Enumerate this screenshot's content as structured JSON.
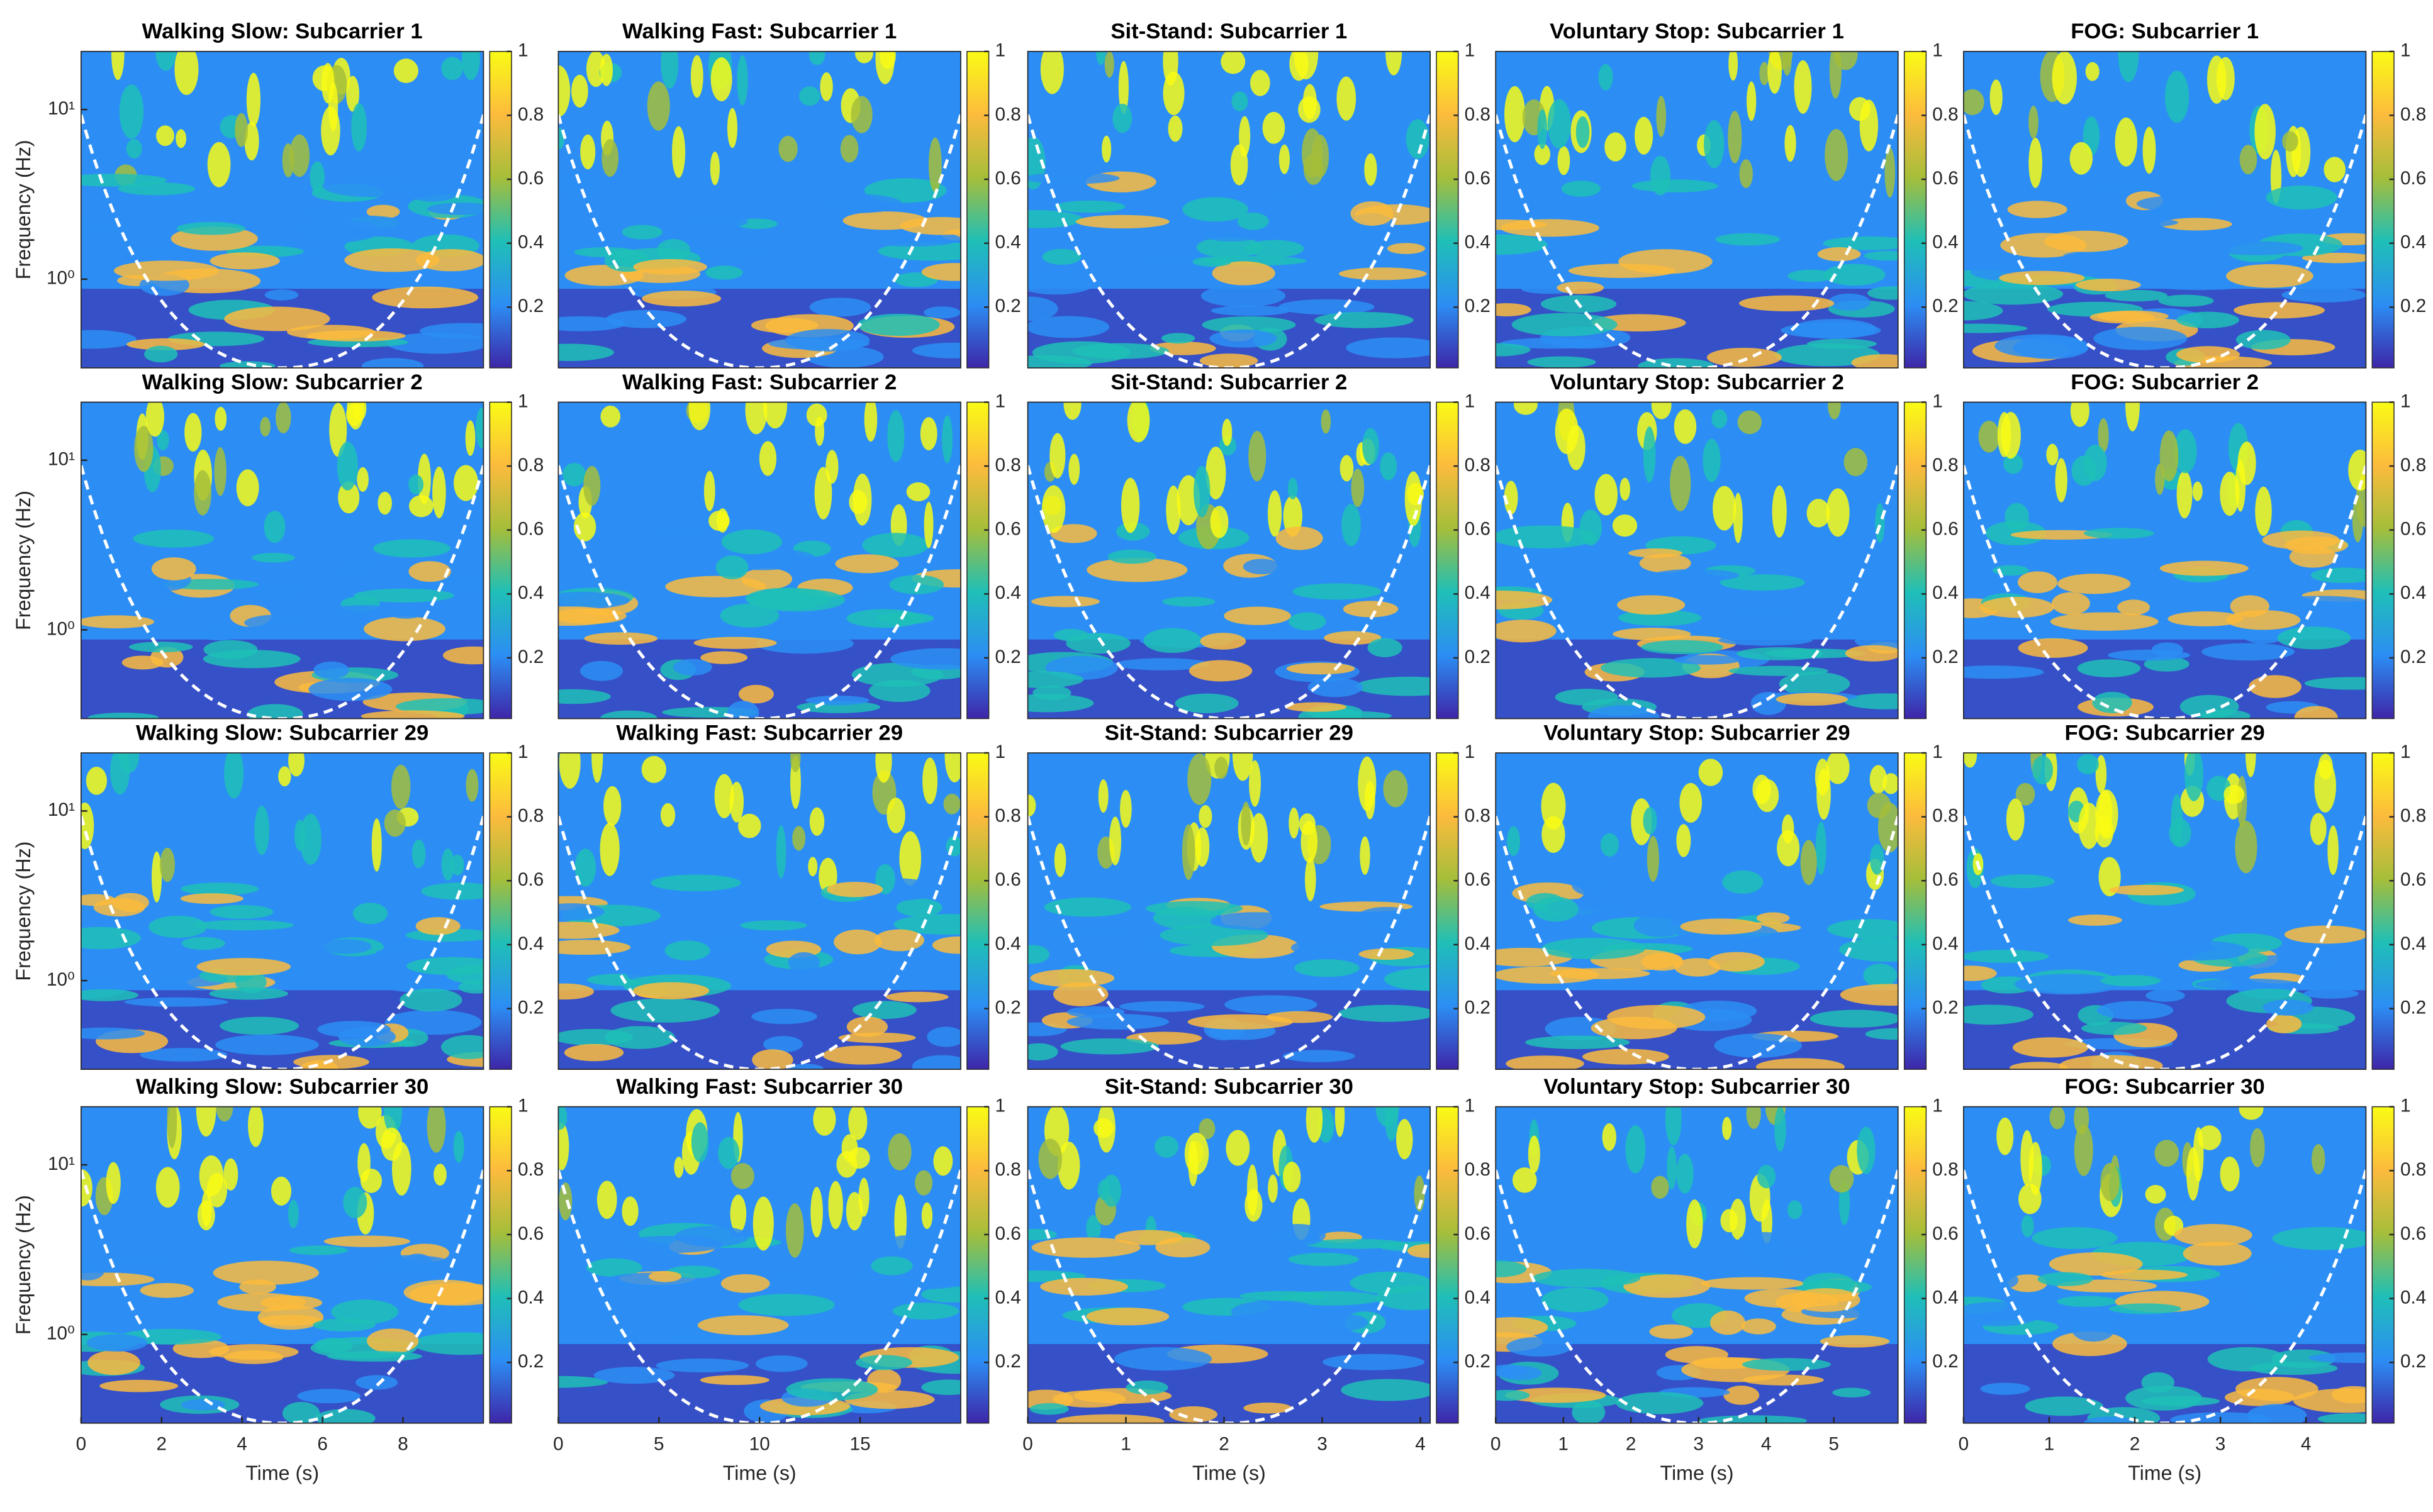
{
  "chart_data": [
    {
      "type": "heatmap",
      "title": "Walking Slow: Subcarrier 1",
      "xlim": [
        0,
        10
      ],
      "ylim": [
        0.3,
        22
      ],
      "yscale": "log",
      "yticks": [
        {
          "value": 1,
          "label": "10⁰"
        },
        {
          "value": 10,
          "label": "10¹"
        }
      ],
      "ylabel": "Frequency (Hz)",
      "clim": [
        0.01,
        1
      ],
      "cticks": [
        0.2,
        0.4,
        0.6,
        0.8,
        1
      ],
      "colormap": [
        "#3e26a8",
        "#2c8ef4",
        "#1fbfb7",
        "#a5be3a",
        "#fcbb3d",
        "#f9fb15"
      ]
    },
    {
      "type": "heatmap",
      "title": "Walking Fast: Subcarrier 1",
      "xlim": [
        0,
        20
      ],
      "ylim": [
        0.3,
        22
      ],
      "yscale": "log",
      "clim": [
        0.01,
        1
      ],
      "cticks": [
        0.2,
        0.4,
        0.6,
        0.8,
        1
      ],
      "colormap": [
        "#3e26a8",
        "#2c8ef4",
        "#1fbfb7",
        "#a5be3a",
        "#fcbb3d",
        "#f9fb15"
      ]
    },
    {
      "type": "heatmap",
      "title": "Sit-Stand: Subcarrier 1",
      "xlim": [
        0,
        4.1
      ],
      "ylim": [
        0.3,
        22
      ],
      "yscale": "log",
      "clim": [
        0.01,
        1
      ],
      "cticks": [
        0.2,
        0.4,
        0.6,
        0.8,
        1
      ],
      "colormap": [
        "#3e26a8",
        "#2c8ef4",
        "#1fbfb7",
        "#a5be3a",
        "#fcbb3d",
        "#f9fb15"
      ]
    },
    {
      "type": "heatmap",
      "title": "Voluntary Stop: Subcarrier 1",
      "xlim": [
        0,
        5.95
      ],
      "ylim": [
        0.3,
        22
      ],
      "yscale": "log",
      "clim": [
        0.01,
        1
      ],
      "cticks": [
        0.2,
        0.4,
        0.6,
        0.8,
        1
      ],
      "colormap": [
        "#3e26a8",
        "#2c8ef4",
        "#1fbfb7",
        "#a5be3a",
        "#fcbb3d",
        "#f9fb15"
      ]
    },
    {
      "type": "heatmap",
      "title": "FOG: Subcarrier 1",
      "xlim": [
        0,
        4.7
      ],
      "ylim": [
        0.3,
        22
      ],
      "yscale": "log",
      "clim": [
        0.01,
        1
      ],
      "cticks": [
        0.2,
        0.4,
        0.6,
        0.8,
        1
      ],
      "colormap": [
        "#3e26a8",
        "#2c8ef4",
        "#1fbfb7",
        "#a5be3a",
        "#fcbb3d",
        "#f9fb15"
      ]
    },
    {
      "type": "heatmap",
      "title": "Walking Slow: Subcarrier 2",
      "xlim": [
        0,
        10
      ],
      "ylim": [
        0.3,
        22
      ],
      "yscale": "log",
      "yticks": [
        {
          "value": 1,
          "label": "10⁰"
        },
        {
          "value": 10,
          "label": "10¹"
        }
      ],
      "ylabel": "Frequency (Hz)",
      "clim": [
        0.01,
        1
      ],
      "cticks": [
        0.2,
        0.4,
        0.6,
        0.8,
        1
      ],
      "colormap": [
        "#3e26a8",
        "#2c8ef4",
        "#1fbfb7",
        "#a5be3a",
        "#fcbb3d",
        "#f9fb15"
      ]
    },
    {
      "type": "heatmap",
      "title": "Walking Fast: Subcarrier 2",
      "xlim": [
        0,
        20
      ],
      "ylim": [
        0.3,
        22
      ],
      "yscale": "log",
      "clim": [
        0.01,
        1
      ],
      "cticks": [
        0.2,
        0.4,
        0.6,
        0.8,
        1
      ],
      "colormap": [
        "#3e26a8",
        "#2c8ef4",
        "#1fbfb7",
        "#a5be3a",
        "#fcbb3d",
        "#f9fb15"
      ]
    },
    {
      "type": "heatmap",
      "title": "Sit-Stand: Subcarrier 2",
      "xlim": [
        0,
        4.1
      ],
      "ylim": [
        0.3,
        22
      ],
      "yscale": "log",
      "clim": [
        0.01,
        1
      ],
      "cticks": [
        0.2,
        0.4,
        0.6,
        0.8,
        1
      ],
      "colormap": [
        "#3e26a8",
        "#2c8ef4",
        "#1fbfb7",
        "#a5be3a",
        "#fcbb3d",
        "#f9fb15"
      ]
    },
    {
      "type": "heatmap",
      "title": "Voluntary Stop: Subcarrier 2",
      "xlim": [
        0,
        5.95
      ],
      "ylim": [
        0.3,
        22
      ],
      "yscale": "log",
      "clim": [
        0.01,
        1
      ],
      "cticks": [
        0.2,
        0.4,
        0.6,
        0.8,
        1
      ],
      "colormap": [
        "#3e26a8",
        "#2c8ef4",
        "#1fbfb7",
        "#a5be3a",
        "#fcbb3d",
        "#f9fb15"
      ]
    },
    {
      "type": "heatmap",
      "title": "FOG: Subcarrier 2",
      "xlim": [
        0,
        4.7
      ],
      "ylim": [
        0.3,
        22
      ],
      "yscale": "log",
      "clim": [
        0.01,
        1
      ],
      "cticks": [
        0.2,
        0.4,
        0.6,
        0.8,
        1
      ],
      "colormap": [
        "#3e26a8",
        "#2c8ef4",
        "#1fbfb7",
        "#a5be3a",
        "#fcbb3d",
        "#f9fb15"
      ]
    },
    {
      "type": "heatmap",
      "title": "Walking Slow: Subcarrier 29",
      "xlim": [
        0,
        10
      ],
      "ylim": [
        0.3,
        22
      ],
      "yscale": "log",
      "yticks": [
        {
          "value": 1,
          "label": "10⁰"
        },
        {
          "value": 10,
          "label": "10¹"
        }
      ],
      "ylabel": "Frequency (Hz)",
      "clim": [
        0.01,
        1
      ],
      "cticks": [
        0.2,
        0.4,
        0.6,
        0.8,
        1
      ],
      "colormap": [
        "#3e26a8",
        "#2c8ef4",
        "#1fbfb7",
        "#a5be3a",
        "#fcbb3d",
        "#f9fb15"
      ]
    },
    {
      "type": "heatmap",
      "title": "Walking Fast: Subcarrier 29",
      "xlim": [
        0,
        20
      ],
      "ylim": [
        0.3,
        22
      ],
      "yscale": "log",
      "clim": [
        0.01,
        1
      ],
      "cticks": [
        0.2,
        0.4,
        0.6,
        0.8,
        1
      ],
      "colormap": [
        "#3e26a8",
        "#2c8ef4",
        "#1fbfb7",
        "#a5be3a",
        "#fcbb3d",
        "#f9fb15"
      ]
    },
    {
      "type": "heatmap",
      "title": "Sit-Stand: Subcarrier 29",
      "xlim": [
        0,
        4.1
      ],
      "ylim": [
        0.3,
        22
      ],
      "yscale": "log",
      "clim": [
        0.01,
        1
      ],
      "cticks": [
        0.2,
        0.4,
        0.6,
        0.8,
        1
      ],
      "colormap": [
        "#3e26a8",
        "#2c8ef4",
        "#1fbfb7",
        "#a5be3a",
        "#fcbb3d",
        "#f9fb15"
      ]
    },
    {
      "type": "heatmap",
      "title": "Voluntary Stop: Subcarrier 29",
      "xlim": [
        0,
        5.95
      ],
      "ylim": [
        0.3,
        22
      ],
      "yscale": "log",
      "clim": [
        0.01,
        1
      ],
      "cticks": [
        0.2,
        0.4,
        0.6,
        0.8,
        1
      ],
      "colormap": [
        "#3e26a8",
        "#2c8ef4",
        "#1fbfb7",
        "#a5be3a",
        "#fcbb3d",
        "#f9fb15"
      ]
    },
    {
      "type": "heatmap",
      "title": "FOG: Subcarrier 29",
      "xlim": [
        0,
        4.7
      ],
      "ylim": [
        0.3,
        22
      ],
      "yscale": "log",
      "clim": [
        0.01,
        1
      ],
      "cticks": [
        0.2,
        0.4,
        0.6,
        0.8,
        1
      ],
      "colormap": [
        "#3e26a8",
        "#2c8ef4",
        "#1fbfb7",
        "#a5be3a",
        "#fcbb3d",
        "#f9fb15"
      ]
    },
    {
      "type": "heatmap",
      "title": "Walking Slow: Subcarrier 30",
      "xlim": [
        0,
        10
      ],
      "xticks": [
        0,
        2,
        4,
        6,
        8
      ],
      "xlabel": "Time (s)",
      "ylim": [
        0.3,
        22
      ],
      "yscale": "log",
      "yticks": [
        {
          "value": 1,
          "label": "10⁰"
        },
        {
          "value": 10,
          "label": "10¹"
        }
      ],
      "ylabel": "Frequency (Hz)",
      "clim": [
        0.01,
        1
      ],
      "cticks": [
        0.2,
        0.4,
        0.6,
        0.8,
        1
      ],
      "colormap": [
        "#3e26a8",
        "#2c8ef4",
        "#1fbfb7",
        "#a5be3a",
        "#fcbb3d",
        "#f9fb15"
      ]
    },
    {
      "type": "heatmap",
      "title": "Walking Fast: Subcarrier 30",
      "xlim": [
        0,
        20
      ],
      "xticks": [
        0,
        5,
        10,
        15
      ],
      "xlabel": "Time (s)",
      "ylim": [
        0.3,
        22
      ],
      "yscale": "log",
      "clim": [
        0.01,
        1
      ],
      "cticks": [
        0.2,
        0.4,
        0.6,
        0.8,
        1
      ],
      "colormap": [
        "#3e26a8",
        "#2c8ef4",
        "#1fbfb7",
        "#a5be3a",
        "#fcbb3d",
        "#f9fb15"
      ]
    },
    {
      "type": "heatmap",
      "title": "Sit-Stand: Subcarrier 30",
      "xlim": [
        0,
        4.1
      ],
      "xticks": [
        0,
        1,
        2,
        3,
        4
      ],
      "xlabel": "Time (s)",
      "ylim": [
        0.3,
        22
      ],
      "yscale": "log",
      "clim": [
        0.01,
        1
      ],
      "cticks": [
        0.2,
        0.4,
        0.6,
        0.8,
        1
      ],
      "colormap": [
        "#3e26a8",
        "#2c8ef4",
        "#1fbfb7",
        "#a5be3a",
        "#fcbb3d",
        "#f9fb15"
      ]
    },
    {
      "type": "heatmap",
      "title": "Voluntary Stop: Subcarrier 30",
      "xlim": [
        0,
        5.95
      ],
      "xticks": [
        0,
        1,
        2,
        3,
        4,
        5
      ],
      "xlabel": "Time (s)",
      "ylim": [
        0.3,
        22
      ],
      "yscale": "log",
      "clim": [
        0.01,
        1
      ],
      "cticks": [
        0.2,
        0.4,
        0.6,
        0.8,
        1
      ],
      "colormap": [
        "#3e26a8",
        "#2c8ef4",
        "#1fbfb7",
        "#a5be3a",
        "#fcbb3d",
        "#f9fb15"
      ]
    },
    {
      "type": "heatmap",
      "title": "FOG: Subcarrier 30",
      "xlim": [
        0,
        4.7
      ],
      "xticks": [
        0,
        1,
        2,
        3,
        4
      ],
      "xlabel": "Time (s)",
      "ylim": [
        0.3,
        22
      ],
      "yscale": "log",
      "clim": [
        0.01,
        1
      ],
      "cticks": [
        0.2,
        0.4,
        0.6,
        0.8,
        1
      ],
      "colormap": [
        "#3e26a8",
        "#2c8ef4",
        "#1fbfb7",
        "#a5be3a",
        "#fcbb3d",
        "#f9fb15"
      ]
    }
  ]
}
